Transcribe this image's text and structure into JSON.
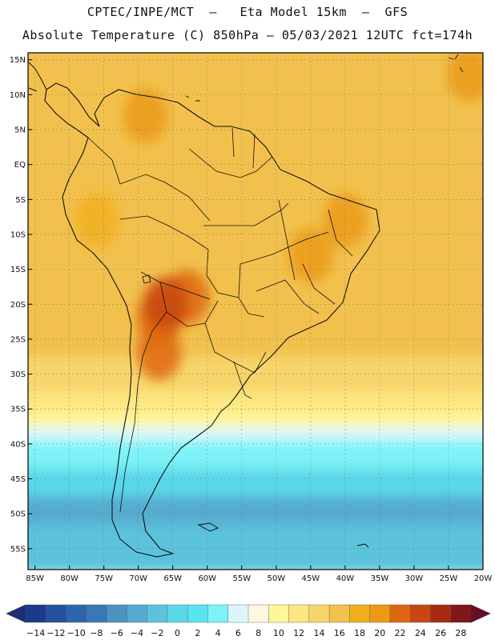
{
  "header": {
    "line1": "CPTEC/INPE/MCT  –   Eta Model 15km  –  GFS",
    "line2": "Absolute Temperature (C) 850hPa – 05/03/2021 12UTC fct=174h"
  },
  "map": {
    "extent": {
      "lon_min": -86,
      "lon_max": -20,
      "lat_min": -58,
      "lat_max": 16
    },
    "lat_ticks": [
      {
        "value": 15,
        "label": "15N"
      },
      {
        "value": 10,
        "label": "10N"
      },
      {
        "value": 5,
        "label": "5N"
      },
      {
        "value": 0,
        "label": "EQ"
      },
      {
        "value": -5,
        "label": "5S"
      },
      {
        "value": -10,
        "label": "10S"
      },
      {
        "value": -15,
        "label": "15S"
      },
      {
        "value": -20,
        "label": "20S"
      },
      {
        "value": -25,
        "label": "25S"
      },
      {
        "value": -30,
        "label": "30S"
      },
      {
        "value": -35,
        "label": "35S"
      },
      {
        "value": -40,
        "label": "40S"
      },
      {
        "value": -45,
        "label": "45S"
      },
      {
        "value": -50,
        "label": "50S"
      },
      {
        "value": -55,
        "label": "55S"
      }
    ],
    "lon_ticks": [
      {
        "value": -85,
        "label": "85W"
      },
      {
        "value": -80,
        "label": "80W"
      },
      {
        "value": -75,
        "label": "75W"
      },
      {
        "value": -70,
        "label": "70W"
      },
      {
        "value": -65,
        "label": "65W"
      },
      {
        "value": -60,
        "label": "60W"
      },
      {
        "value": -55,
        "label": "55W"
      },
      {
        "value": -50,
        "label": "50W"
      },
      {
        "value": -45,
        "label": "45W"
      },
      {
        "value": -40,
        "label": "40W"
      },
      {
        "value": -35,
        "label": "35W"
      },
      {
        "value": -30,
        "label": "30W"
      },
      {
        "value": -25,
        "label": "25W"
      },
      {
        "value": -20,
        "label": "20W"
      }
    ],
    "field_bands": [
      {
        "lat_top": 16,
        "lat_bottom": -28,
        "temp": 16
      },
      {
        "lat_top": -28,
        "lat_bottom": -33,
        "temp": 14
      },
      {
        "lat_top": -33,
        "lat_bottom": -36,
        "temp": 12
      },
      {
        "lat_top": -36,
        "lat_bottom": -38,
        "temp": 10
      },
      {
        "lat_top": -38,
        "lat_bottom": -40,
        "temp": 6
      },
      {
        "lat_top": -40,
        "lat_bottom": -44,
        "temp": 4
      },
      {
        "lat_top": -44,
        "lat_bottom": -48,
        "temp": 0
      },
      {
        "lat_top": -48,
        "lat_bottom": -52,
        "temp": -4
      },
      {
        "lat_top": -52,
        "lat_bottom": -58,
        "temp": -2
      }
    ],
    "warm_areas": [
      {
        "lon": -63,
        "lat": -19,
        "temp": 22
      },
      {
        "lon": -67,
        "lat": -22,
        "temp": 22
      },
      {
        "lon": -66,
        "lat": -20,
        "temp": 24
      },
      {
        "lon": -67,
        "lat": -27,
        "temp": 22
      },
      {
        "lon": -45,
        "lat": -13,
        "temp": 20
      },
      {
        "lon": -40,
        "lat": -8,
        "temp": 20
      },
      {
        "lon": -69,
        "lat": 7,
        "temp": 20
      },
      {
        "lon": -22,
        "lat": 13,
        "temp": 20
      },
      {
        "lon": -76,
        "lat": -8,
        "temp": 18
      }
    ]
  },
  "colorbar": {
    "labels": [
      "-14",
      "-12",
      "-10",
      "-8",
      "-6",
      "-4",
      "-2",
      "0",
      "2",
      "4",
      "6",
      "8",
      "10",
      "12",
      "14",
      "16",
      "18",
      "20",
      "22",
      "24",
      "26",
      "28"
    ],
    "colors": [
      "#1b3a8c",
      "#23519d",
      "#2d65ad",
      "#3978b6",
      "#4a93c2",
      "#56acd0",
      "#5cc3dd",
      "#5ad8e8",
      "#57e6f1",
      "#7df3f7",
      "#d9f7fb",
      "#fff6e0",
      "#fff69a",
      "#fde782",
      "#f8d56a",
      "#f2c14e",
      "#f0b01e",
      "#eb9a14",
      "#df6710",
      "#c84612",
      "#a82a12",
      "#80171a"
    ],
    "left_arrow_color": "#1c2d7a",
    "right_arrow_color": "#6a0f22"
  }
}
